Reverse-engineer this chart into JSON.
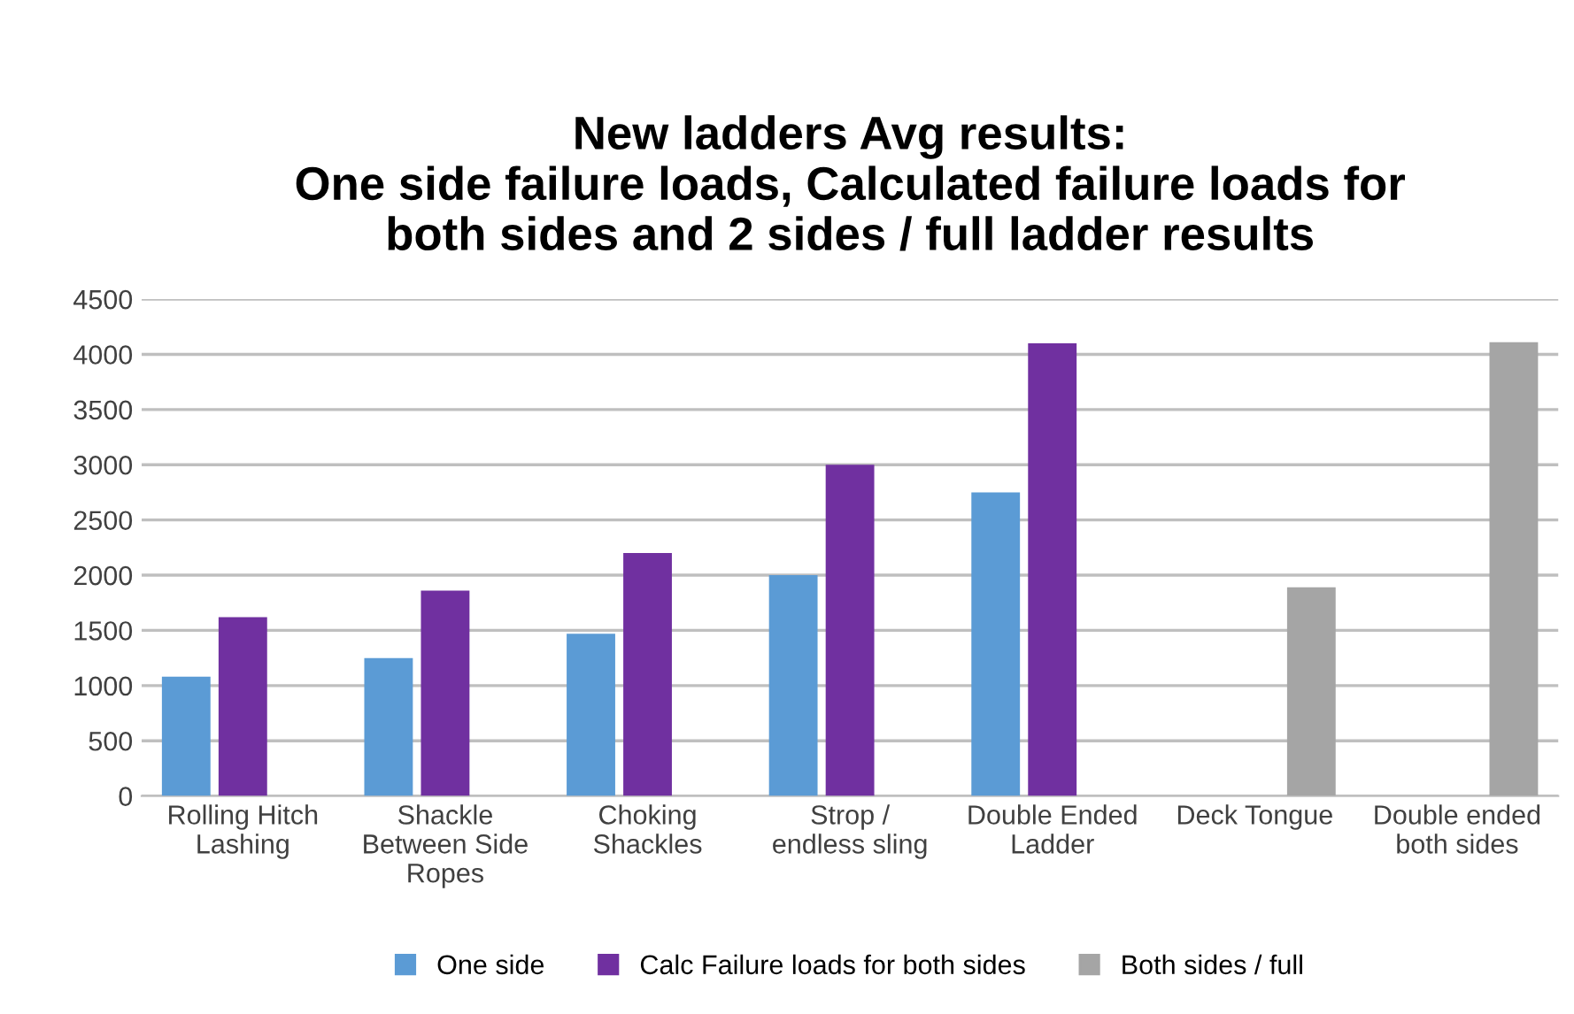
{
  "chart_data": {
    "type": "bar",
    "title": "New ladders Avg results:\nOne side failure loads, Calculated failure loads for\nboth sides and 2 sides / full ladder results",
    "categories": [
      "Rolling Hitch\nLashing",
      "Shackle\nBetween Side\nRopes",
      "Choking\nShackles",
      "Strop /\nendless sling",
      "Double Ended\nLadder",
      "Deck Tongue",
      "Double ended\nboth sides"
    ],
    "series": [
      {
        "name": "One side",
        "color": "#5b9bd5",
        "values": [
          1080,
          1250,
          1470,
          2000,
          2750,
          null,
          null
        ]
      },
      {
        "name": "Calc Failure loads for both sides",
        "color": "#7030a0",
        "values": [
          1620,
          1860,
          2200,
          3000,
          4100,
          null,
          null
        ]
      },
      {
        "name": "Both sides / full",
        "color": "#a5a5a5",
        "values": [
          null,
          null,
          null,
          null,
          null,
          1890,
          4110
        ]
      }
    ],
    "ylim": [
      0,
      4500
    ],
    "yticks": [
      0,
      500,
      1000,
      1500,
      2000,
      2500,
      3000,
      3500,
      4000,
      4500
    ],
    "grid": "y",
    "legend": "bottom"
  }
}
